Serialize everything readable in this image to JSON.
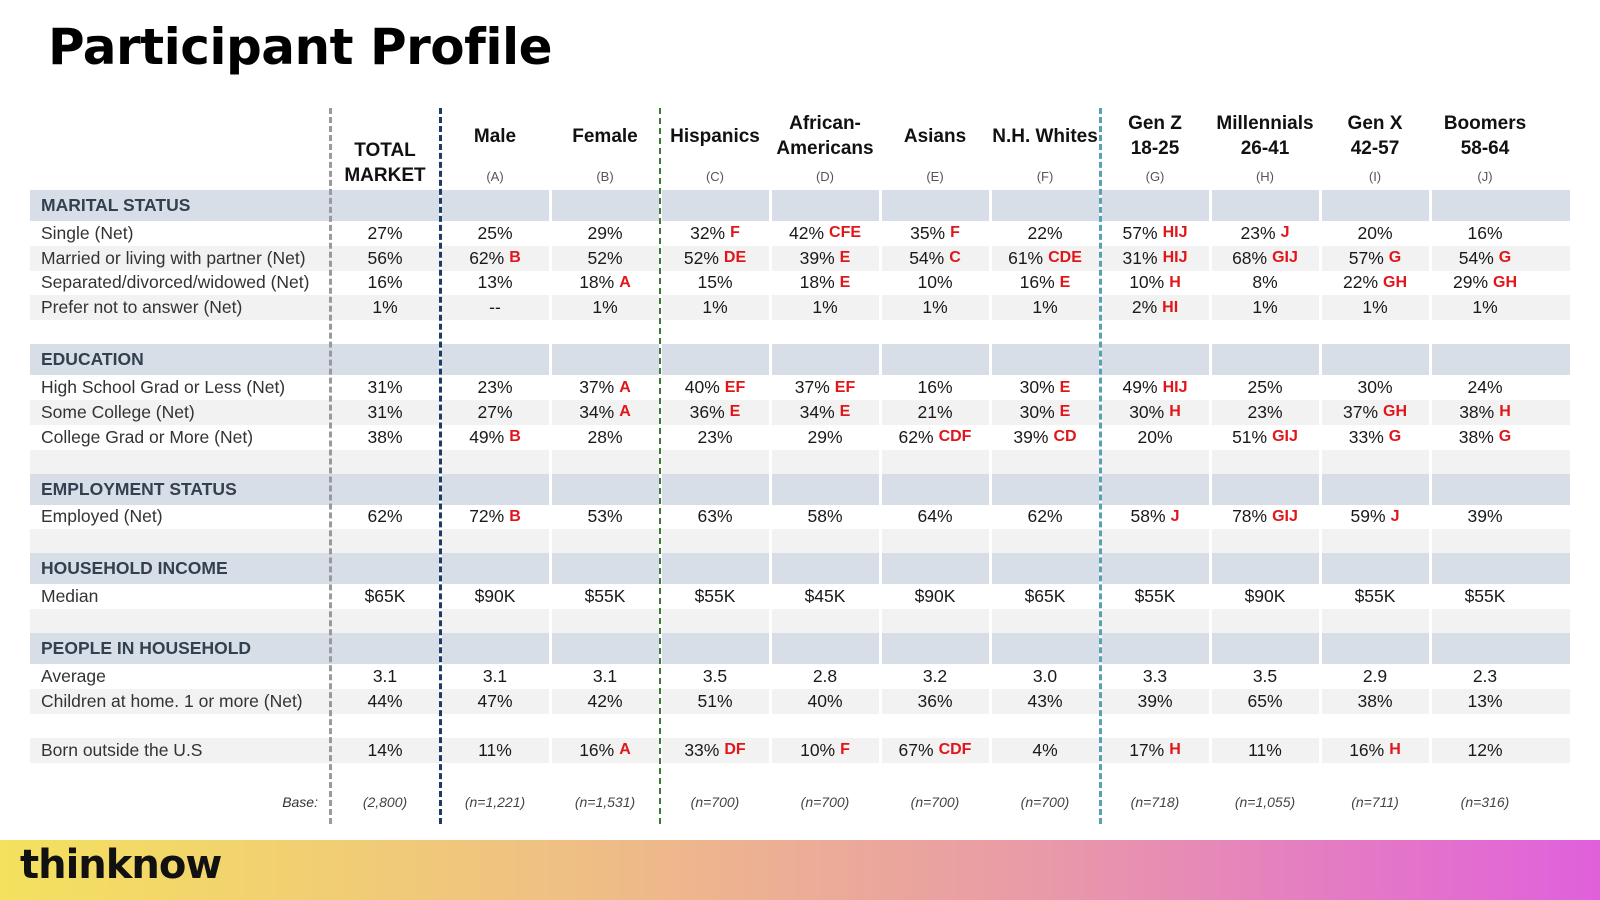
{
  "title": "Participant Profile",
  "brand": "thinknow",
  "columns": [
    {
      "label": "TOTAL\nMARKET",
      "letter": ""
    },
    {
      "label": "Male",
      "letter": "(A)"
    },
    {
      "label": "Female",
      "letter": "(B)"
    },
    {
      "label": "Hispanics",
      "letter": "(C)"
    },
    {
      "label": "African-\nAmericans",
      "letter": "(D)"
    },
    {
      "label": "Asians",
      "letter": "(E)"
    },
    {
      "label": "N.H. Whites",
      "letter": "(F)"
    },
    {
      "label": "Gen Z\n18-25",
      "letter": "(G)"
    },
    {
      "label": "Millennials\n26-41",
      "letter": "(H)"
    },
    {
      "label": "Gen X\n42-57",
      "letter": "(I)"
    },
    {
      "label": "Boomers\n58-64",
      "letter": "(J)"
    }
  ],
  "rows": [
    {
      "kind": "section",
      "label": "MARITAL STATUS"
    },
    {
      "kind": "data",
      "label": "Single (Net)",
      "cells": [
        [
          "27%",
          ""
        ],
        [
          "25%",
          ""
        ],
        [
          "29%",
          ""
        ],
        [
          "32%",
          "F"
        ],
        [
          "42%",
          "CFE"
        ],
        [
          "35%",
          "F"
        ],
        [
          "22%",
          ""
        ],
        [
          "57%",
          "HIJ"
        ],
        [
          "23%",
          "J"
        ],
        [
          "20%",
          ""
        ],
        [
          "16%",
          ""
        ]
      ]
    },
    {
      "kind": "data",
      "label": "Married or living with partner (Net)",
      "cells": [
        [
          "56%",
          ""
        ],
        [
          "62%",
          "B"
        ],
        [
          "52%",
          ""
        ],
        [
          "52%",
          "DE"
        ],
        [
          "39%",
          "E"
        ],
        [
          "54%",
          "C"
        ],
        [
          "61%",
          "CDE"
        ],
        [
          "31%",
          "HIJ"
        ],
        [
          "68%",
          "GIJ"
        ],
        [
          "57%",
          "G"
        ],
        [
          "54%",
          "G"
        ]
      ]
    },
    {
      "kind": "data",
      "label": "Separated/divorced/widowed (Net)",
      "cells": [
        [
          "16%",
          ""
        ],
        [
          "13%",
          ""
        ],
        [
          "18%",
          "A"
        ],
        [
          "15%",
          ""
        ],
        [
          "18%",
          "E"
        ],
        [
          "10%",
          ""
        ],
        [
          "16%",
          "E"
        ],
        [
          "10%",
          "H"
        ],
        [
          "8%",
          ""
        ],
        [
          "22%",
          "GH"
        ],
        [
          "29%",
          "GH"
        ]
      ]
    },
    {
      "kind": "data",
      "label": "Prefer not to answer (Net)",
      "cells": [
        [
          "1%",
          ""
        ],
        [
          "--",
          ""
        ],
        [
          "1%",
          ""
        ],
        [
          "1%",
          ""
        ],
        [
          "1%",
          ""
        ],
        [
          "1%",
          ""
        ],
        [
          "1%",
          ""
        ],
        [
          "2%",
          "HI"
        ],
        [
          "1%",
          ""
        ],
        [
          "1%",
          ""
        ],
        [
          "1%",
          ""
        ]
      ]
    },
    {
      "kind": "blank"
    },
    {
      "kind": "section",
      "label": "EDUCATION"
    },
    {
      "kind": "data",
      "label": "High School Grad or Less (Net)",
      "cells": [
        [
          "31%",
          ""
        ],
        [
          "23%",
          ""
        ],
        [
          "37%",
          "A"
        ],
        [
          "40%",
          "EF"
        ],
        [
          "37%",
          "EF"
        ],
        [
          "16%",
          ""
        ],
        [
          "30%",
          "E"
        ],
        [
          "49%",
          "HIJ"
        ],
        [
          "25%",
          ""
        ],
        [
          "30%",
          ""
        ],
        [
          "24%",
          ""
        ]
      ]
    },
    {
      "kind": "data",
      "label": "Some College (Net)",
      "cells": [
        [
          "31%",
          ""
        ],
        [
          "27%",
          ""
        ],
        [
          "34%",
          "A"
        ],
        [
          "36%",
          "E"
        ],
        [
          "34%",
          "E"
        ],
        [
          "21%",
          ""
        ],
        [
          "30%",
          "E"
        ],
        [
          "30%",
          "H"
        ],
        [
          "23%",
          ""
        ],
        [
          "37%",
          "GH"
        ],
        [
          "38%",
          "H"
        ]
      ]
    },
    {
      "kind": "data",
      "label": "College Grad or More (Net)",
      "cells": [
        [
          "38%",
          ""
        ],
        [
          "49%",
          "B"
        ],
        [
          "28%",
          ""
        ],
        [
          "23%",
          ""
        ],
        [
          "29%",
          ""
        ],
        [
          "62%",
          "CDF"
        ],
        [
          "39%",
          "CD"
        ],
        [
          "20%",
          ""
        ],
        [
          "51%",
          "GIJ"
        ],
        [
          "33%",
          "G"
        ],
        [
          "38%",
          "G"
        ]
      ]
    },
    {
      "kind": "blank"
    },
    {
      "kind": "section",
      "label": "EMPLOYMENT STATUS"
    },
    {
      "kind": "data",
      "label": "Employed (Net)",
      "cells": [
        [
          "62%",
          ""
        ],
        [
          "72%",
          "B"
        ],
        [
          "53%",
          ""
        ],
        [
          "63%",
          ""
        ],
        [
          "58%",
          ""
        ],
        [
          "64%",
          ""
        ],
        [
          "62%",
          ""
        ],
        [
          "58%",
          "J"
        ],
        [
          "78%",
          "GIJ"
        ],
        [
          "59%",
          "J"
        ],
        [
          "39%",
          ""
        ]
      ]
    },
    {
      "kind": "blank"
    },
    {
      "kind": "section",
      "label": "HOUSEHOLD INCOME"
    },
    {
      "kind": "data",
      "label": "Median",
      "cells": [
        [
          "$65K",
          ""
        ],
        [
          "$90K",
          ""
        ],
        [
          "$55K",
          ""
        ],
        [
          "$55K",
          ""
        ],
        [
          "$45K",
          ""
        ],
        [
          "$90K",
          ""
        ],
        [
          "$65K",
          ""
        ],
        [
          "$55K",
          ""
        ],
        [
          "$90K",
          ""
        ],
        [
          "$55K",
          ""
        ],
        [
          "$55K",
          ""
        ]
      ]
    },
    {
      "kind": "blank"
    },
    {
      "kind": "section",
      "label": "PEOPLE IN HOUSEHOLD"
    },
    {
      "kind": "data",
      "label": "Average",
      "cells": [
        [
          "3.1",
          ""
        ],
        [
          "3.1",
          ""
        ],
        [
          "3.1",
          ""
        ],
        [
          "3.5",
          ""
        ],
        [
          "2.8",
          ""
        ],
        [
          "3.2",
          ""
        ],
        [
          "3.0",
          ""
        ],
        [
          "3.3",
          ""
        ],
        [
          "3.5",
          ""
        ],
        [
          "2.9",
          ""
        ],
        [
          "2.3",
          ""
        ]
      ]
    },
    {
      "kind": "data",
      "label": "Children at home. 1 or more (Net)",
      "cells": [
        [
          "44%",
          ""
        ],
        [
          "47%",
          ""
        ],
        [
          "42%",
          ""
        ],
        [
          "51%",
          ""
        ],
        [
          "40%",
          ""
        ],
        [
          "36%",
          ""
        ],
        [
          "43%",
          ""
        ],
        [
          "39%",
          ""
        ],
        [
          "65%",
          ""
        ],
        [
          "38%",
          ""
        ],
        [
          "13%",
          ""
        ]
      ]
    },
    {
      "kind": "blank"
    },
    {
      "kind": "data",
      "label": "Born outside the U.S",
      "cells": [
        [
          "14%",
          ""
        ],
        [
          "11%",
          ""
        ],
        [
          "16%",
          "A"
        ],
        [
          "33%",
          "DF"
        ],
        [
          "10%",
          "F"
        ],
        [
          "67%",
          "CDF"
        ],
        [
          "4%",
          ""
        ],
        [
          "17%",
          "H"
        ],
        [
          "11%",
          ""
        ],
        [
          "16%",
          "H"
        ],
        [
          "12%",
          ""
        ]
      ]
    },
    {
      "kind": "blank"
    },
    {
      "kind": "base",
      "label": "Base:",
      "cells": [
        [
          "(2,800)",
          ""
        ],
        [
          "(n=1,221)",
          ""
        ],
        [
          "(n=1,531)",
          ""
        ],
        [
          "(n=700)",
          ""
        ],
        [
          "(n=700)",
          ""
        ],
        [
          "(n=700)",
          ""
        ],
        [
          "(n=700)",
          ""
        ],
        [
          "(n=718)",
          ""
        ],
        [
          "(n=1,055)",
          ""
        ],
        [
          "(n=711)",
          ""
        ],
        [
          "(n=316)",
          ""
        ]
      ]
    }
  ]
}
